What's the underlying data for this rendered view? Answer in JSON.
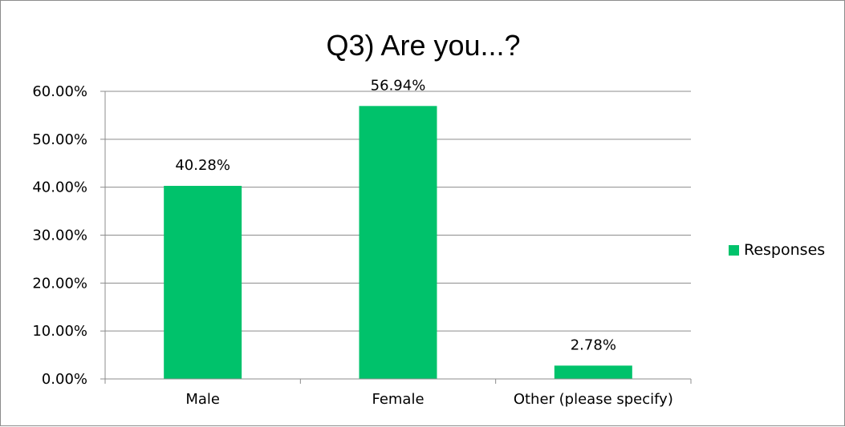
{
  "chart_data": {
    "type": "bar",
    "title": "Q3) Are you...?",
    "categories": [
      "Male",
      "Female",
      "Other (please specify)"
    ],
    "series": [
      {
        "name": "Responses",
        "values": [
          40.28,
          56.94,
          2.78
        ],
        "data_labels": [
          "40.28%",
          "56.94%",
          "2.78%"
        ],
        "color": "#00c26b"
      }
    ],
    "ylim": [
      0,
      60
    ],
    "y_ticks": [
      0,
      10,
      20,
      30,
      40,
      50,
      60
    ],
    "y_tick_labels": [
      "0.00%",
      "10.00%",
      "20.00%",
      "30.00%",
      "40.00%",
      "50.00%",
      "60.00%"
    ],
    "xlabel": "",
    "ylabel": "",
    "grid": true,
    "legend_position": "right"
  }
}
